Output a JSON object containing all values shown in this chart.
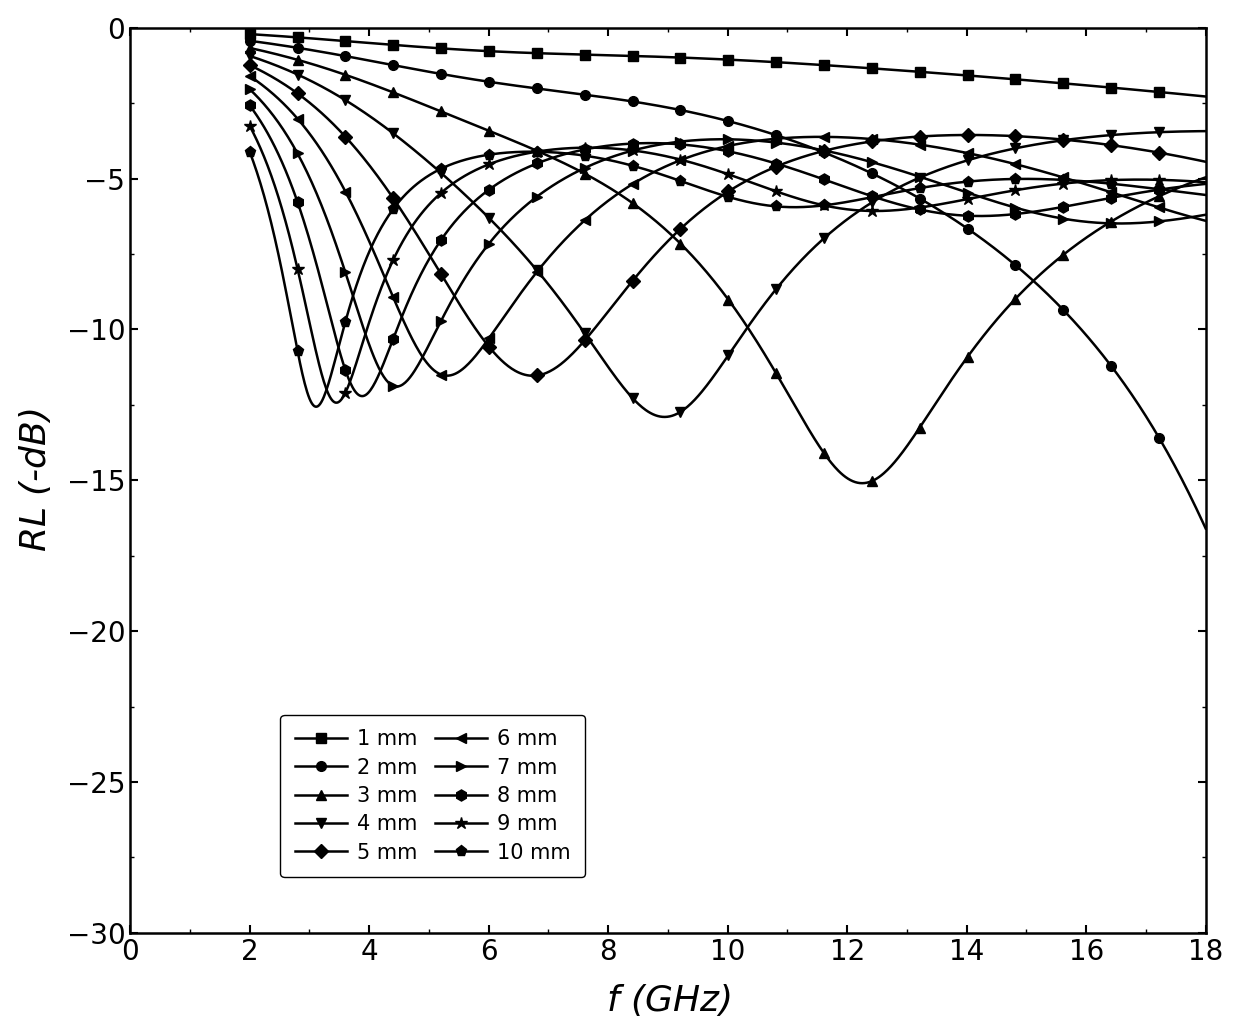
{
  "freq_min": 2,
  "freq_max": 18,
  "rl_min": -30,
  "rl_max": 0,
  "xlabel": "$f$ (GHz)",
  "ylabel": "$RL$ (-dB)",
  "thicknesses_mm": [
    1,
    2,
    3,
    4,
    5,
    6,
    7,
    8,
    9,
    10
  ],
  "labels": [
    "1 mm",
    "2 mm",
    "3 mm",
    "4 mm",
    "5 mm",
    "6 mm",
    "7 mm",
    "8 mm",
    "9 mm",
    "10 mm"
  ],
  "markers": [
    "s",
    "o",
    "^",
    "v",
    "D",
    "<",
    ">",
    "h",
    "*",
    "p"
  ],
  "color": "#000000",
  "background": "#ffffff",
  "label_fontsize": 26,
  "tick_fontsize": 20,
  "legend_fontsize": 15,
  "markersize": 7,
  "linewidth": 1.8
}
